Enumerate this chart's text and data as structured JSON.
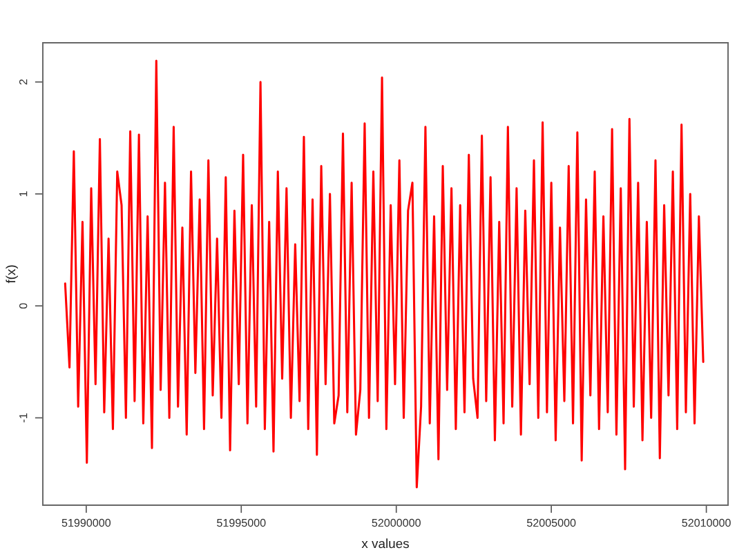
{
  "chart_data": {
    "type": "line",
    "xlabel": "x values",
    "ylabel": "f(x)",
    "x": [
      51989320,
      51989460,
      51989600,
      51989740,
      51989880,
      51990020,
      51990160,
      51990300,
      51990440,
      51990580,
      51990720,
      51990860,
      51991000,
      51991140,
      51991280,
      51991420,
      51991560,
      51991700,
      51991840,
      51991980,
      51992120,
      51992260,
      51992400,
      51992540,
      51992680,
      51992820,
      51992960,
      51993100,
      51993240,
      51993380,
      51993520,
      51993660,
      51993800,
      51993940,
      51994080,
      51994220,
      51994360,
      51994500,
      51994640,
      51994780,
      51994920,
      51995060,
      51995200,
      51995340,
      51995480,
      51995620,
      51995760,
      51995900,
      51996040,
      51996180,
      51996320,
      51996460,
      51996600,
      51996740,
      51996880,
      51997020,
      51997160,
      51997300,
      51997440,
      51997580,
      51997720,
      51997860,
      51998000,
      51998140,
      51998280,
      51998420,
      51998560,
      51998700,
      51998840,
      51998980,
      51999120,
      51999260,
      51999400,
      51999540,
      51999680,
      51999820,
      51999960,
      52000100,
      52000240,
      52000380,
      52000520,
      52000660,
      52000800,
      52000940,
      52001080,
      52001220,
      52001360,
      52001500,
      52001640,
      52001780,
      52001920,
      52002060,
      52002200,
      52002340,
      52002480,
      52002620,
      52002760,
      52002900,
      52003040,
      52003180,
      52003320,
      52003460,
      52003600,
      52003740,
      52003880,
      52004020,
      52004160,
      52004300,
      52004440,
      52004580,
      52004720,
      52004860,
      52005000,
      52005140,
      52005280,
      52005420,
      52005560,
      52005700,
      52005840,
      52005980,
      52006120,
      52006260,
      52006400,
      52006540,
      52006680,
      52006820,
      52006960,
      52007100,
      52007240,
      52007380,
      52007520,
      52007660,
      52007800,
      52007940,
      52008080,
      52008220,
      52008360,
      52008500,
      52008640,
      52008780,
      52008920,
      52009060,
      52009200,
      52009340,
      52009480,
      52009620,
      52009760,
      52009900
    ],
    "series": [
      {
        "color": "#ff0000",
        "values": [
          0.2,
          -0.55,
          1.38,
          -0.9,
          0.75,
          -1.4,
          1.05,
          -0.7,
          1.49,
          -0.95,
          0.6,
          -1.1,
          1.2,
          0.9,
          -1.0,
          1.56,
          -0.85,
          1.53,
          -1.05,
          0.8,
          -1.27,
          2.19,
          -0.75,
          1.1,
          -1.0,
          1.6,
          -0.9,
          0.7,
          -1.15,
          1.2,
          -0.6,
          0.95,
          -1.1,
          1.3,
          -0.8,
          0.6,
          -1.0,
          1.15,
          -1.29,
          0.85,
          -0.7,
          1.35,
          -1.05,
          0.9,
          -0.9,
          2.0,
          -1.1,
          0.75,
          -1.3,
          1.2,
          -0.65,
          1.05,
          -1.0,
          0.55,
          -0.85,
          1.51,
          -1.1,
          0.95,
          -1.33,
          1.25,
          -0.7,
          1.0,
          -1.05,
          -0.8,
          1.54,
          -0.95,
          1.1,
          -1.15,
          -0.75,
          1.63,
          -1.0,
          1.2,
          -0.85,
          2.04,
          -1.1,
          0.9,
          -0.7,
          1.3,
          -1.0,
          0.85,
          1.1,
          -1.62,
          -0.9,
          1.6,
          -1.05,
          0.8,
          -1.37,
          1.25,
          -0.75,
          1.05,
          -1.1,
          0.9,
          -0.95,
          1.35,
          -0.65,
          -1.0,
          1.52,
          -0.85,
          1.15,
          -1.2,
          0.75,
          -1.05,
          1.6,
          -0.9,
          1.05,
          -1.15,
          0.85,
          -0.7,
          1.3,
          -1.0,
          1.64,
          -0.95,
          1.1,
          -1.2,
          0.7,
          -0.85,
          1.25,
          -1.05,
          1.55,
          -1.38,
          0.95,
          -0.8,
          1.2,
          -1.1,
          0.8,
          -0.95,
          1.58,
          -1.15,
          1.05,
          -1.46,
          1.67,
          -0.9,
          1.1,
          -1.2,
          0.75,
          -1.0,
          1.3,
          -1.36,
          0.9,
          -0.8,
          1.2,
          -1.1,
          1.62,
          -0.95,
          1.0,
          -1.05,
          0.8,
          -0.5
        ]
      }
    ],
    "xlim": [
      51988600,
      52010700
    ],
    "ylim": [
      -1.78,
      2.35
    ],
    "xticks": [
      51990000,
      51995000,
      52000000,
      52005000,
      52010000
    ],
    "yticks": [
      -1,
      0,
      1,
      2
    ]
  }
}
